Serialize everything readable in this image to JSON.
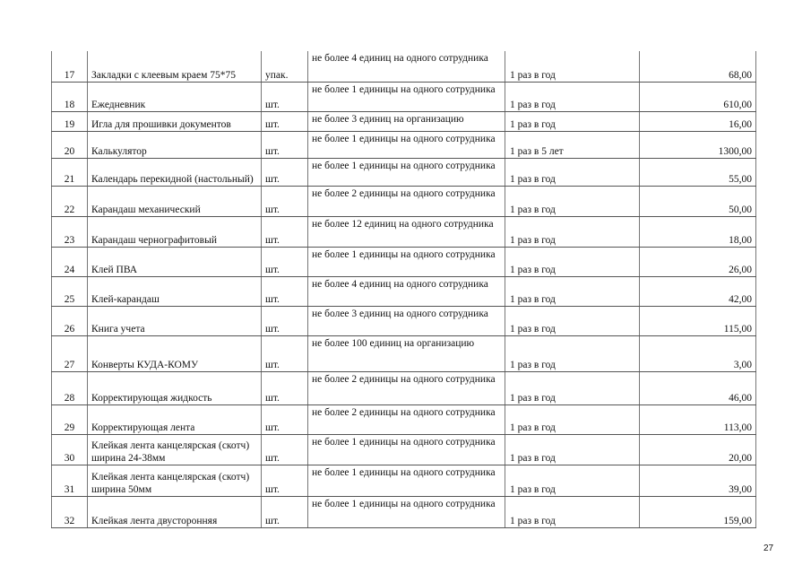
{
  "rows": [
    {
      "n": "17",
      "name": "Закладки с клеевым краем 75*75",
      "unit": "упак.",
      "norm": "не более 4 единиц на одного сотрудника",
      "period": "1 раз в год",
      "price": "68,00"
    },
    {
      "n": "18",
      "name": "Ежедневник",
      "unit": "шт.",
      "norm": "не более 1 единицы на одного сотрудника",
      "period": "1 раз в год",
      "price": "610,00"
    },
    {
      "n": "19",
      "name": "Игла для прошивки документов",
      "unit": "шт.",
      "norm": "не более 3 единиц на организацию",
      "period": "1 раз в год",
      "price": "16,00"
    },
    {
      "n": "20",
      "name": "Калькулятор",
      "unit": "шт.",
      "norm": "не более 1 единицы на одного сотрудника",
      "period": "1 раз в 5 лет",
      "price": "1300,00"
    },
    {
      "n": "21",
      "name": "Календарь перекидной (настольный)",
      "unit": "шт.",
      "norm": "не более 1 единицы на одного сотрудника",
      "period": "1 раз в год",
      "price": "55,00"
    },
    {
      "n": "22",
      "name": "Карандаш механический",
      "unit": "шт.",
      "norm": "не более 2 единицы на одного сотрудника",
      "period": "1 раз в год",
      "price": "50,00"
    },
    {
      "n": "23",
      "name": "Карандаш чернографитовый",
      "unit": "шт.",
      "norm": "не более 12 единиц на одного сотрудника",
      "period": "1 раз в год",
      "price": "18,00"
    },
    {
      "n": "24",
      "name": "Клей ПВА",
      "unit": "шт.",
      "norm": "не более 1 единицы на одного сотрудника",
      "period": "1 раз в год",
      "price": "26,00"
    },
    {
      "n": "25",
      "name": "Клей-карандаш",
      "unit": "шт.",
      "norm": "не более 4 единиц на одного сотрудника",
      "period": "1 раз в год",
      "price": "42,00"
    },
    {
      "n": "26",
      "name": "Книга учета",
      "unit": "шт.",
      "norm": "не более 3 единиц на одного сотрудника",
      "period": "1 раз в год",
      "price": "115,00"
    },
    {
      "n": "27",
      "name": "Конверты КУДА-КОМУ",
      "unit": "шт.",
      "norm": "не более 100 единиц на организацию",
      "period": "1 раз в год",
      "price": "3,00"
    },
    {
      "n": "28",
      "name": "Корректирующая жидкость",
      "unit": "шт.",
      "norm": "не более 2 единицы на одного сотрудника",
      "period": "1 раз в год",
      "price": "46,00"
    },
    {
      "n": "29",
      "name": "Корректирующая лента",
      "unit": "шт.",
      "norm": "не более 2 единицы на одного сотрудника",
      "period": "1 раз в год",
      "price": "113,00"
    },
    {
      "n": "30",
      "name": "Клейкая лента канцелярская (скотч) ширина 24-38мм",
      "unit": "шт.",
      "norm": "не более 1 единицы на одного сотрудника",
      "period": "1 раз в год",
      "price": "20,00"
    },
    {
      "n": "31",
      "name": "Клейкая лента канцелярская (скотч) ширина 50мм",
      "unit": "шт.",
      "norm": "не более 1 единицы на одного сотрудника",
      "period": "1 раз в год",
      "price": "39,00"
    },
    {
      "n": "32",
      "name": "Клейкая лента двусторонняя",
      "unit": "шт.",
      "norm": "не более 1 единицы на одного сотрудника",
      "period": "1 раз в год",
      "price": "159,00"
    }
  ],
  "page_number": "27"
}
